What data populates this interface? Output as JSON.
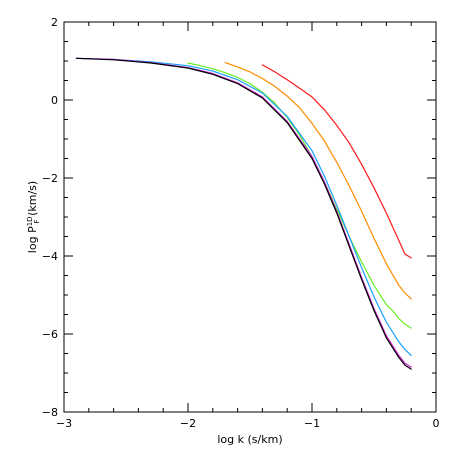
{
  "chart_data": {
    "type": "line",
    "title": "",
    "xlabel": "log k (s/km)",
    "ylabel_parts": [
      "log P",
      "1D",
      "F",
      " (km/s)"
    ],
    "xlim": [
      -3,
      0
    ],
    "ylim": [
      -8,
      2
    ],
    "x_ticks": [
      -3,
      -2,
      -1,
      0
    ],
    "x_tick_labels": [
      "−3",
      "−2",
      "−1",
      "0"
    ],
    "y_ticks": [
      -8,
      -6,
      -4,
      -2,
      0,
      2
    ],
    "y_tick_labels": [
      "−8",
      "−6",
      "−4",
      "−2",
      "0",
      "2"
    ],
    "grid": false,
    "series": [
      {
        "color": "#ff1a1a",
        "x": [
          -1.4,
          -1.3,
          -1.2,
          -1.1,
          -1.0,
          -0.9,
          -0.8,
          -0.7,
          -0.6,
          -0.5,
          -0.4,
          -0.3,
          -0.25,
          -0.2
        ],
        "y": [
          0.9,
          0.72,
          0.52,
          0.3,
          0.08,
          -0.25,
          -0.65,
          -1.1,
          -1.65,
          -2.25,
          -2.9,
          -3.6,
          -3.95,
          -4.05
        ]
      },
      {
        "color": "#ff8c00",
        "x": [
          -1.7,
          -1.6,
          -1.5,
          -1.4,
          -1.3,
          -1.2,
          -1.1,
          -1.0,
          -0.9,
          -0.8,
          -0.7,
          -0.6,
          -0.5,
          -0.4,
          -0.3,
          -0.25,
          -0.2
        ],
        "y": [
          0.96,
          0.85,
          0.72,
          0.55,
          0.35,
          0.1,
          -0.2,
          -0.6,
          -1.05,
          -1.6,
          -2.2,
          -2.85,
          -3.55,
          -4.2,
          -4.75,
          -4.95,
          -5.1
        ]
      },
      {
        "color": "#66ee22",
        "x": [
          -2.0,
          -1.9,
          -1.8,
          -1.7,
          -1.6,
          -1.5,
          -1.4,
          -1.3,
          -1.2,
          -1.1,
          -1.0,
          -0.9,
          -0.8,
          -0.7,
          -0.6,
          -0.5,
          -0.4,
          -0.35,
          -0.3,
          -0.25,
          -0.2
        ],
        "y": [
          0.95,
          0.88,
          0.8,
          0.7,
          0.58,
          0.42,
          0.2,
          -0.08,
          -0.45,
          -0.9,
          -1.45,
          -2.1,
          -2.8,
          -3.5,
          -4.15,
          -4.75,
          -5.25,
          -5.4,
          -5.6,
          -5.75,
          -5.85
        ]
      },
      {
        "color": "#1a9fff",
        "x": [
          -2.9,
          -2.6,
          -2.3,
          -2.0,
          -1.8,
          -1.6,
          -1.4,
          -1.2,
          -1.0,
          -0.9,
          -0.8,
          -0.7,
          -0.6,
          -0.5,
          -0.4,
          -0.3,
          -0.25,
          -0.2
        ],
        "y": [
          1.07,
          1.04,
          0.98,
          0.88,
          0.74,
          0.52,
          0.18,
          -0.42,
          -1.3,
          -1.95,
          -2.7,
          -3.5,
          -4.3,
          -5.05,
          -5.7,
          -6.2,
          -6.4,
          -6.55
        ]
      },
      {
        "color": "#cc22cc",
        "x": [
          -2.9,
          -2.6,
          -2.3,
          -2.0,
          -1.8,
          -1.6,
          -1.4,
          -1.2,
          -1.0,
          -0.9,
          -0.8,
          -0.7,
          -0.6,
          -0.5,
          -0.4,
          -0.3,
          -0.25,
          -0.2
        ],
        "y": [
          1.07,
          1.04,
          0.96,
          0.83,
          0.68,
          0.44,
          0.08,
          -0.55,
          -1.45,
          -2.1,
          -2.85,
          -3.7,
          -4.55,
          -5.35,
          -6.05,
          -6.55,
          -6.75,
          -6.85
        ]
      },
      {
        "color": "#000000",
        "x": [
          -2.9,
          -2.6,
          -2.3,
          -2.0,
          -1.8,
          -1.6,
          -1.4,
          -1.2,
          -1.0,
          -0.9,
          -0.8,
          -0.7,
          -0.6,
          -0.5,
          -0.4,
          -0.3,
          -0.25,
          -0.2
        ],
        "y": [
          1.07,
          1.03,
          0.95,
          0.82,
          0.66,
          0.42,
          0.05,
          -0.58,
          -1.5,
          -2.15,
          -2.9,
          -3.75,
          -4.6,
          -5.4,
          -6.1,
          -6.6,
          -6.8,
          -6.9
        ]
      }
    ]
  }
}
